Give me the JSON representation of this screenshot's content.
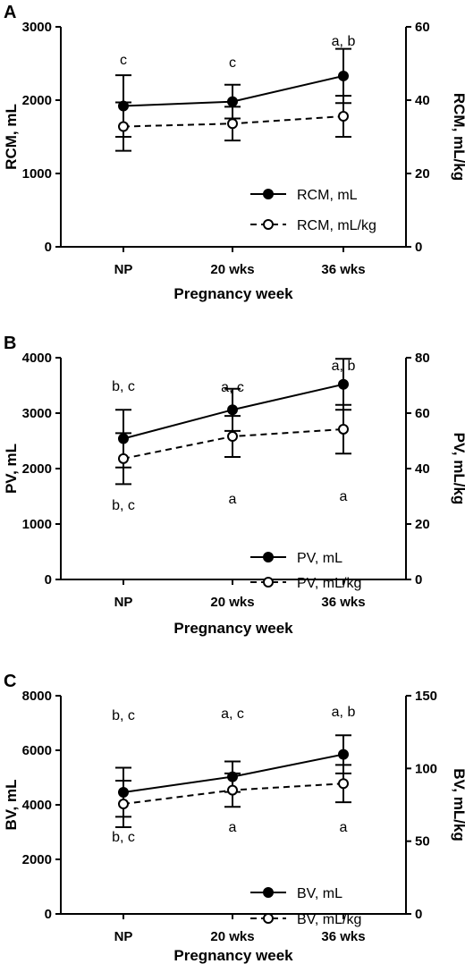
{
  "chart_data": [
    {
      "type": "line",
      "panel": "A",
      "categories": [
        "NP",
        "20 wks",
        "36 wks"
      ],
      "xlabel": "Pregnancy week",
      "ylabel_left": "RCM, mL",
      "ylabel_right": "RCM, mL/kg",
      "ylim_left": [
        0,
        3000
      ],
      "ylim_right": [
        0,
        60
      ],
      "yticks_left": [
        "0",
        "1000",
        "2000",
        "3000"
      ],
      "yticks_right": [
        "0",
        "20",
        "40",
        "60"
      ],
      "legend_position": "bottom-right",
      "series": [
        {
          "name": "RCM, mL",
          "axis": "left",
          "style": "solid-filled",
          "values": [
            1920,
            1980,
            2330
          ],
          "err": [
            420,
            230,
            370
          ]
        },
        {
          "name": "RCM, mL/kg",
          "axis": "right",
          "style": "dashed-open",
          "values": [
            32.8,
            33.6,
            35.6
          ],
          "err": [
            6.6,
            4.6,
            5.6
          ]
        }
      ],
      "annotations": [
        {
          "category": "NP",
          "text": "c",
          "position": "above"
        },
        {
          "category": "20 wks",
          "text": "c",
          "position": "above"
        },
        {
          "category": "36 wks",
          "text": "a, b",
          "position": "above"
        }
      ]
    },
    {
      "type": "line",
      "panel": "B",
      "categories": [
        "NP",
        "20 wks",
        "36 wks"
      ],
      "xlabel": "Pregnancy week",
      "ylabel_left": "PV, mL",
      "ylabel_right": "PV, mL/kg",
      "ylim_left": [
        0,
        4000
      ],
      "ylim_right": [
        0,
        80
      ],
      "yticks_left": [
        "0",
        "1000",
        "2000",
        "3000",
        "4000"
      ],
      "yticks_right": [
        "0",
        "20",
        "40",
        "60",
        "80"
      ],
      "legend_position": "bottom-right",
      "series": [
        {
          "name": "PV, mL",
          "axis": "left",
          "style": "solid-filled",
          "values": [
            2540,
            3060,
            3520
          ],
          "err": [
            520,
            380,
            460
          ]
        },
        {
          "name": "PV, mL/kg",
          "axis": "right",
          "style": "dashed-open",
          "values": [
            43.6,
            51.6,
            54.2
          ],
          "err": [
            9.2,
            7.4,
            8.8
          ]
        }
      ],
      "annotations": [
        {
          "category": "NP",
          "text": "b, c",
          "position": "above"
        },
        {
          "category": "20 wks",
          "text": "a, c",
          "position": "above"
        },
        {
          "category": "36 wks",
          "text": "a, b",
          "position": "above"
        },
        {
          "category": "NP",
          "text": "b, c",
          "position": "below"
        },
        {
          "category": "20 wks",
          "text": "a",
          "position": "below"
        },
        {
          "category": "36 wks",
          "text": "a",
          "position": "below"
        }
      ]
    },
    {
      "type": "line",
      "panel": "C",
      "categories": [
        "NP",
        "20 wks",
        "36 wks"
      ],
      "xlabel": "Pregnancy week",
      "ylabel_left": "BV, mL",
      "ylabel_right": "BV, mL/kg",
      "ylim_left": [
        0,
        8000
      ],
      "ylim_right": [
        0,
        150
      ],
      "yticks_left": [
        "0",
        "2000",
        "4000",
        "6000",
        "8000"
      ],
      "yticks_right": [
        "0",
        "50",
        "100",
        "150"
      ],
      "yticks_right_values": [
        0,
        50,
        100,
        150
      ],
      "legend_position": "bottom-right",
      "series": [
        {
          "name": "BV, mL",
          "axis": "left",
          "style": "solid-filled",
          "values": [
            4460,
            5030,
            5850
          ],
          "err": [
            900,
            560,
            700
          ]
        },
        {
          "name": "BV, mL/kg",
          "axis": "right",
          "style": "dashed-open",
          "values": [
            75.6,
            85.1,
            89.6
          ],
          "err": [
            16,
            11.5,
            12.8
          ]
        }
      ],
      "annotations": [
        {
          "category": "NP",
          "text": "b, c",
          "position": "above"
        },
        {
          "category": "20 wks",
          "text": "a, c",
          "position": "above"
        },
        {
          "category": "36 wks",
          "text": "a, b",
          "position": "above"
        },
        {
          "category": "NP",
          "text": "b, c",
          "position": "below"
        },
        {
          "category": "20 wks",
          "text": "a",
          "position": "below"
        },
        {
          "category": "36 wks",
          "text": "a",
          "position": "below"
        }
      ]
    }
  ]
}
